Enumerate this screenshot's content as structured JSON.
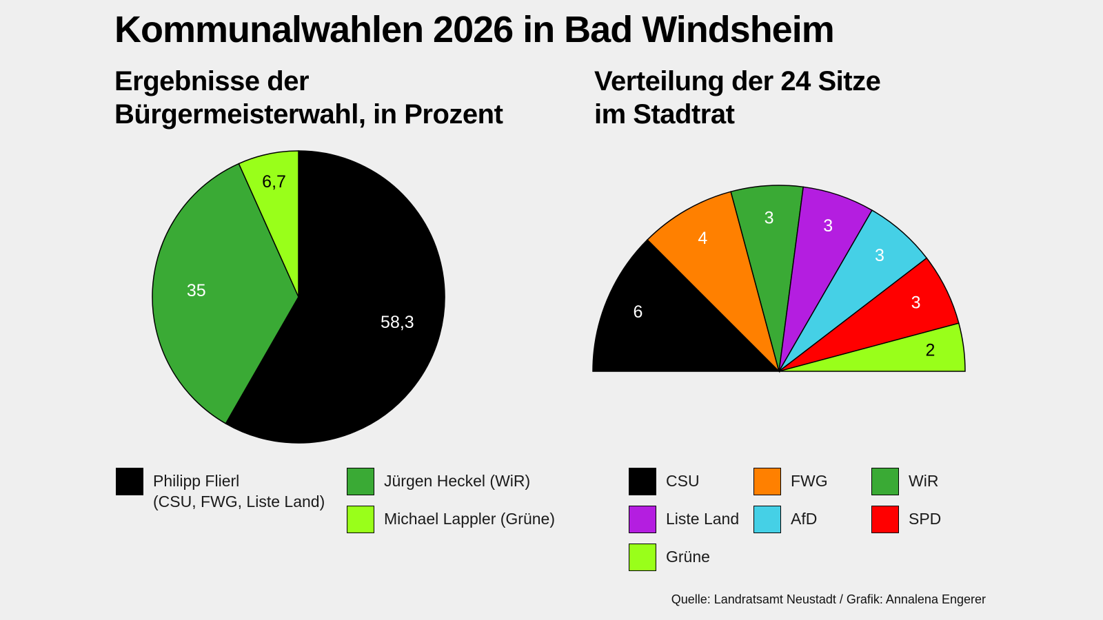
{
  "header": {
    "title": "Kommunalwahlen 2026 in Bad Windsheim",
    "source": "Quelle: Landratsamt Neustadt / Grafik: Annalena Engerer"
  },
  "chart_data": [
    {
      "type": "pie",
      "subtitle": "Ergebnisse der\nBürgermeisterwahl, in Prozent",
      "categories": [
        "Philipp Flierl\n(CSU, FWG, Liste Land)",
        "Jürgen Heckel (WiR)",
        "Michael Lappler (Grüne)"
      ],
      "values": [
        58.3,
        35,
        6.7
      ],
      "value_labels": [
        "58,3",
        "35",
        "6,7"
      ],
      "colors": [
        "#000000",
        "#3aaa35",
        "#99ff1a"
      ],
      "label_colors": [
        "#ffffff",
        "#ffffff",
        "#000000"
      ]
    },
    {
      "type": "semicircle",
      "subtitle": "Verteilung der 24 Sitze\nim Stadtrat",
      "categories": [
        "CSU",
        "FWG",
        "WiR",
        "Liste Land",
        "AfD",
        "SPD",
        "Grüne"
      ],
      "values": [
        6,
        4,
        3,
        3,
        3,
        3,
        2
      ],
      "colors": [
        "#000000",
        "#ff8000",
        "#3aaa35",
        "#b41ee0",
        "#45d0e6",
        "#ff0000",
        "#99ff1a"
      ],
      "label_colors": [
        "#ffffff",
        "#ffffff",
        "#ffffff",
        "#ffffff",
        "#ffffff",
        "#ffffff",
        "#000000"
      ]
    }
  ]
}
